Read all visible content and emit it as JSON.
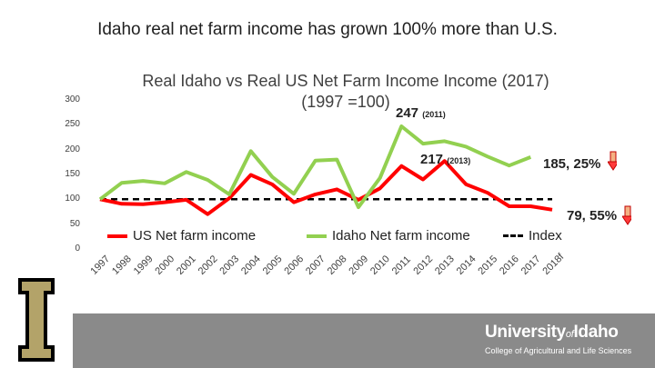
{
  "slide": {
    "title": "Idaho real net farm income has grown 100% more than U.S.",
    "university": {
      "name_a": "University",
      "name_of": "of",
      "name_b": "Idaho",
      "college": "College of Agricultural and Life Sciences"
    }
  },
  "chart_data": {
    "type": "line",
    "title": "Real Idaho vs Real US Net Farm Income Income (2017)",
    "subtitle": "(1997 =100)",
    "categories": [
      "1997",
      "1998",
      "1999",
      "2000",
      "2001",
      "2002",
      "2003",
      "2004",
      "2005",
      "2006",
      "2007",
      "2008",
      "2009",
      "2010",
      "2011",
      "2012",
      "2013",
      "2014",
      "2015",
      "2016",
      "2017",
      "2018f"
    ],
    "yticks": [
      "0",
      "50",
      "100",
      "150",
      "200",
      "250",
      "300"
    ],
    "ylim": [
      0,
      300
    ],
    "series": [
      {
        "name": "US Net farm income",
        "color": "#ff0000",
        "values": [
          100,
          91,
          90,
          94,
          99,
          70,
          102,
          149,
          130,
          94,
          110,
          120,
          99,
          122,
          167,
          140,
          177,
          130,
          113,
          86,
          86,
          79
        ]
      },
      {
        "name": "Idaho Net farm income",
        "color": "#92d050",
        "values": [
          100,
          133,
          137,
          132,
          155,
          139,
          110,
          197,
          145,
          111,
          178,
          180,
          84,
          143,
          247,
          212,
          217,
          206,
          186,
          168,
          185,
          null
        ]
      },
      {
        "name": "Index",
        "color": "#000000",
        "dashed": true,
        "values": [
          100,
          100,
          100,
          100,
          100,
          100,
          100,
          100,
          100,
          100,
          100,
          100,
          100,
          100,
          100,
          100,
          100,
          100,
          100,
          100,
          100,
          100
        ]
      }
    ],
    "annotations": [
      {
        "main": "247",
        "small": "(2011)"
      },
      {
        "main": "217",
        "small": "(2013)"
      },
      {
        "main": "185, 25%"
      },
      {
        "main": "79, 55%"
      }
    ]
  }
}
